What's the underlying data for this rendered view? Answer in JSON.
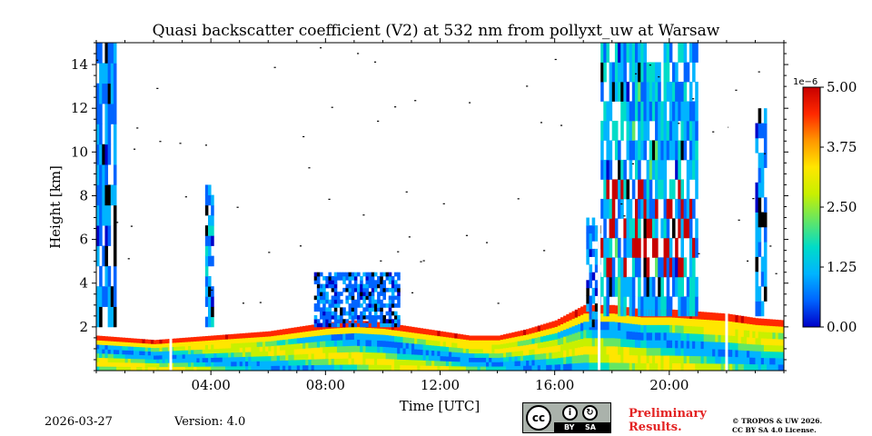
{
  "chart_data": {
    "type": "heatmap",
    "title": "Quasi backscatter coefficient (V2) at 532 nm from pollyxt_uw at Warsaw",
    "xlabel": "Time [UTC]",
    "ylabel": "Height [km]",
    "xlim_hours": [
      0,
      24
    ],
    "ylim_km": [
      0,
      15
    ],
    "xticks": [
      {
        "hour": 4,
        "label": "04:00"
      },
      {
        "hour": 8,
        "label": "08:00"
      },
      {
        "hour": 12,
        "label": "12:00"
      },
      {
        "hour": 16,
        "label": "16:00"
      },
      {
        "hour": 20,
        "label": "20:00"
      }
    ],
    "yticks": [
      {
        "km": 2,
        "label": "2"
      },
      {
        "km": 4,
        "label": "4"
      },
      {
        "km": 6,
        "label": "6"
      },
      {
        "km": 8,
        "label": "8"
      },
      {
        "km": 10,
        "label": "10"
      },
      {
        "km": 12,
        "label": "12"
      },
      {
        "km": 14,
        "label": "14"
      }
    ],
    "colorbar": {
      "exponent_label": "1e−6",
      "vmin": 0.0,
      "vmax": 5.0,
      "ticks": [
        {
          "value": 0.0,
          "label": "0.00"
        },
        {
          "value": 1.25,
          "label": "1.25"
        },
        {
          "value": 2.5,
          "label": "2.50"
        },
        {
          "value": 3.75,
          "label": "3.75"
        },
        {
          "value": 5.0,
          "label": "5.00"
        }
      ],
      "colormap": [
        "#0000c8",
        "#0064ff",
        "#00b4ff",
        "#00dcc8",
        "#64e664",
        "#c8f000",
        "#ffe600",
        "#ff9600",
        "#ff2800",
        "#c80000"
      ]
    },
    "boundary_layer_top_km": [
      [
        0,
        1.6
      ],
      [
        1,
        1.5
      ],
      [
        2,
        1.4
      ],
      [
        3,
        1.5
      ],
      [
        4,
        1.6
      ],
      [
        5,
        1.7
      ],
      [
        6,
        1.8
      ],
      [
        7,
        2.0
      ],
      [
        8,
        2.2
      ],
      [
        9,
        2.3
      ],
      [
        10,
        2.2
      ],
      [
        11,
        2.0
      ],
      [
        12,
        1.8
      ],
      [
        13,
        1.6
      ],
      [
        14,
        1.6
      ],
      [
        15,
        1.9
      ],
      [
        16,
        2.3
      ],
      [
        17,
        3.0
      ],
      [
        18,
        3.0
      ],
      [
        19,
        2.8
      ],
      [
        20,
        2.8
      ],
      [
        21,
        2.7
      ],
      [
        22,
        2.6
      ],
      [
        23,
        2.4
      ],
      [
        24,
        2.3
      ]
    ],
    "features": [
      {
        "name": "night-column-early",
        "t0": 0.0,
        "t1": 0.7,
        "z0": 2.0,
        "z1": 15.0,
        "level": 0.6
      },
      {
        "name": "column-0345",
        "t0": 3.75,
        "t1": 4.05,
        "z0": 2.0,
        "z1": 8.5,
        "level": 0.8
      },
      {
        "name": "column-1700",
        "t0": 17.0,
        "t1": 17.5,
        "z0": 2.0,
        "z1": 7.0,
        "level": 0.7
      },
      {
        "name": "cirrus-evening",
        "t0": 17.5,
        "t1": 21.0,
        "z0": 2.5,
        "z1": 15.0,
        "level": 1.0
      },
      {
        "name": "column-2300",
        "t0": 23.0,
        "t1": 23.4,
        "z0": 2.5,
        "z1": 12.0,
        "level": 0.7
      },
      {
        "name": "aerosol-layer-0830",
        "t0": 7.5,
        "t1": 10.5,
        "z0": 2.0,
        "z1": 4.5,
        "level": 0.5
      }
    ],
    "data_gaps_hours": [
      2.6,
      17.55,
      22.0
    ]
  },
  "footer": {
    "date": "2026-03-27",
    "version": "Version: 4.0",
    "preliminary_line1": "Preliminary",
    "preliminary_line2": "Results.",
    "copyright_line1": "© TROPOS & UW 2026.",
    "copyright_line2": "CC BY SA 4.0 License.",
    "license_badge": {
      "cc": "cc",
      "by": "BY",
      "sa": "SA"
    }
  }
}
